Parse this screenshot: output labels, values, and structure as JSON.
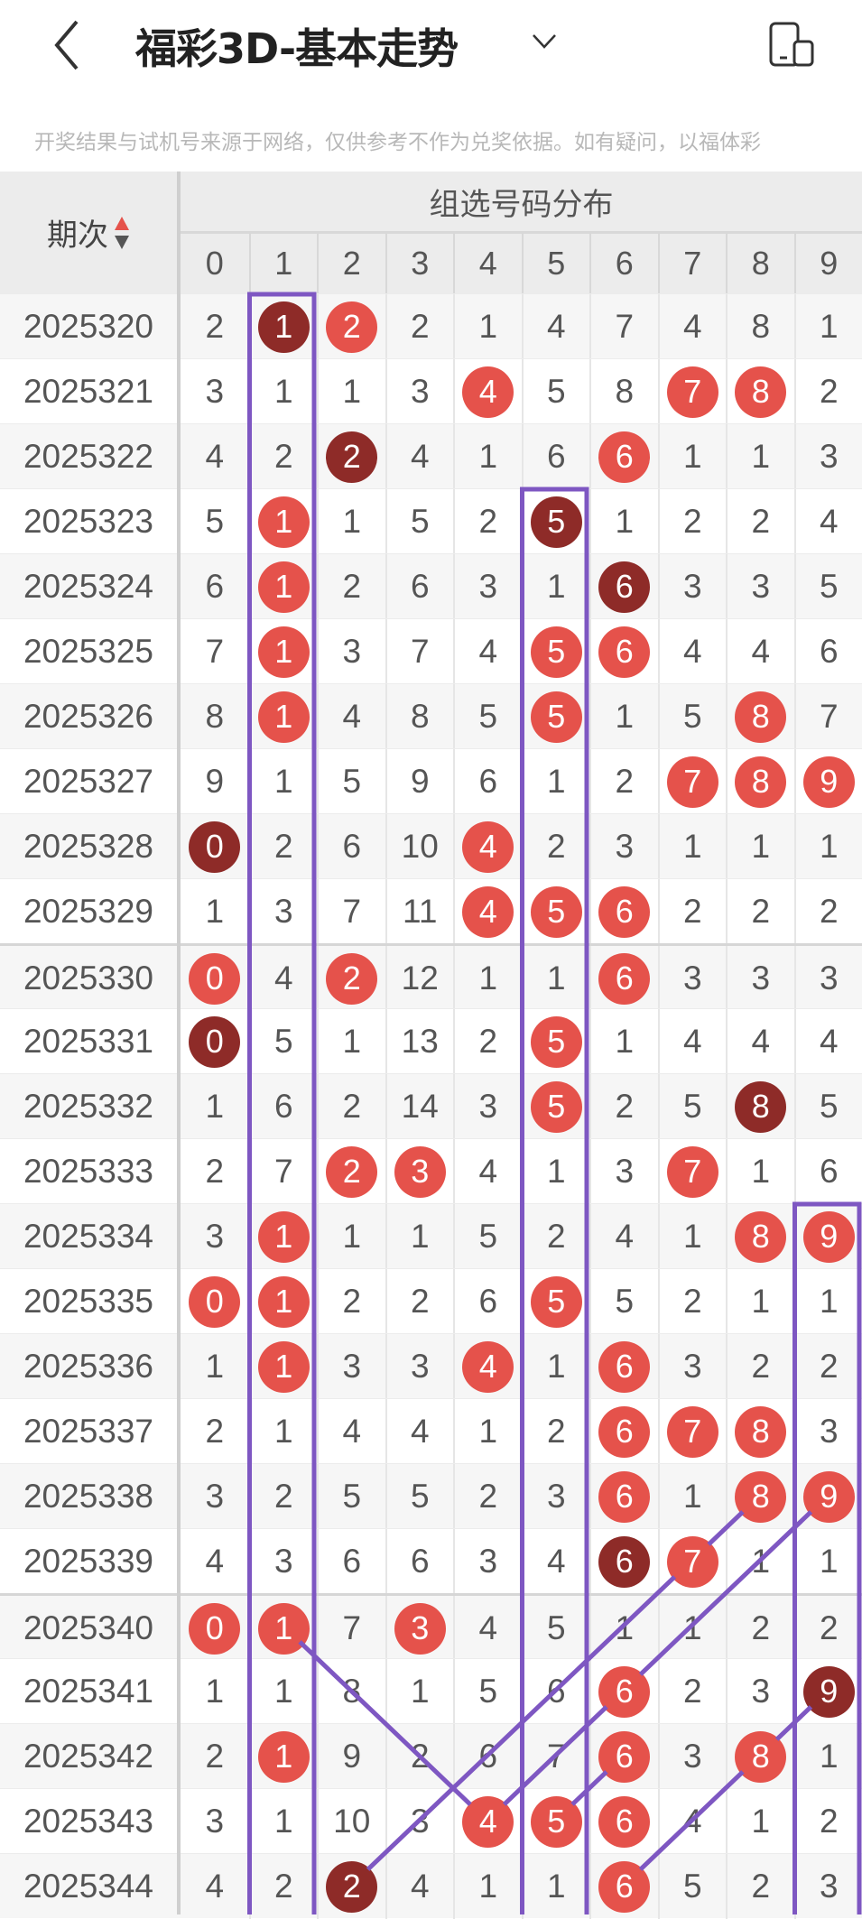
{
  "header": {
    "title": "福彩3D-基本走势",
    "back_icon": "chevron-left-icon",
    "dropdown_icon": "chevron-down-icon",
    "device_icon": "device-rotate-icon"
  },
  "notice": "开奖结果与试机号来源于网络，仅供参考不作为兑奖依据。如有疑问，以福体彩",
  "table": {
    "period_header": "期次",
    "group_header": "组选号码分布",
    "digits": [
      "0",
      "1",
      "2",
      "3",
      "4",
      "5",
      "6",
      "7",
      "8",
      "9"
    ],
    "colors": {
      "hit": "#e5524b",
      "repeat_hit": "#8e2b28",
      "overlay": "#7e57c2"
    },
    "rows": [
      {
        "period": "2025320",
        "cells": [
          2,
          1,
          2,
          2,
          1,
          4,
          7,
          4,
          8,
          1
        ],
        "hits": [
          2
        ],
        "repeat_hits": [
          1
        ]
      },
      {
        "period": "2025321",
        "cells": [
          3,
          1,
          1,
          3,
          4,
          5,
          8,
          7,
          8,
          2
        ],
        "hits": [
          4,
          7,
          8
        ],
        "repeat_hits": []
      },
      {
        "period": "2025322",
        "cells": [
          4,
          2,
          2,
          4,
          1,
          6,
          6,
          1,
          1,
          3
        ],
        "hits": [
          6
        ],
        "repeat_hits": [
          2
        ]
      },
      {
        "period": "2025323",
        "cells": [
          5,
          1,
          1,
          5,
          2,
          5,
          1,
          2,
          2,
          4
        ],
        "hits": [
          1
        ],
        "repeat_hits": [
          5
        ]
      },
      {
        "period": "2025324",
        "cells": [
          6,
          1,
          2,
          6,
          3,
          1,
          6,
          3,
          3,
          5
        ],
        "hits": [
          1
        ],
        "repeat_hits": [
          6
        ]
      },
      {
        "period": "2025325",
        "cells": [
          7,
          1,
          3,
          7,
          4,
          5,
          6,
          4,
          4,
          6
        ],
        "hits": [
          1,
          5,
          6
        ],
        "repeat_hits": []
      },
      {
        "period": "2025326",
        "cells": [
          8,
          1,
          4,
          8,
          5,
          5,
          1,
          5,
          8,
          7
        ],
        "hits": [
          1,
          5,
          8
        ],
        "repeat_hits": []
      },
      {
        "period": "2025327",
        "cells": [
          9,
          1,
          5,
          9,
          6,
          1,
          2,
          7,
          8,
          9
        ],
        "hits": [
          7,
          8,
          9
        ],
        "repeat_hits": []
      },
      {
        "period": "2025328",
        "cells": [
          0,
          2,
          6,
          10,
          4,
          2,
          3,
          1,
          1,
          1
        ],
        "hits": [
          4
        ],
        "repeat_hits": [
          0
        ]
      },
      {
        "period": "2025329",
        "cells": [
          1,
          3,
          7,
          11,
          4,
          5,
          6,
          2,
          2,
          2
        ],
        "hits": [
          4,
          5,
          6
        ],
        "repeat_hits": []
      },
      {
        "period": "2025330",
        "cells": [
          0,
          4,
          2,
          12,
          1,
          1,
          6,
          3,
          3,
          3
        ],
        "hits": [
          0,
          2,
          6
        ],
        "repeat_hits": []
      },
      {
        "period": "2025331",
        "cells": [
          0,
          5,
          1,
          13,
          2,
          5,
          1,
          4,
          4,
          4
        ],
        "hits": [
          5
        ],
        "repeat_hits": [
          0
        ]
      },
      {
        "period": "2025332",
        "cells": [
          1,
          6,
          2,
          14,
          3,
          5,
          2,
          5,
          8,
          5
        ],
        "hits": [
          5
        ],
        "repeat_hits": [
          8
        ]
      },
      {
        "period": "2025333",
        "cells": [
          2,
          7,
          2,
          3,
          4,
          1,
          3,
          7,
          1,
          6
        ],
        "hits": [
          2,
          3,
          7
        ],
        "repeat_hits": []
      },
      {
        "period": "2025334",
        "cells": [
          3,
          1,
          1,
          1,
          5,
          2,
          4,
          1,
          8,
          9
        ],
        "hits": [
          1,
          8,
          9
        ],
        "repeat_hits": []
      },
      {
        "period": "2025335",
        "cells": [
          0,
          1,
          2,
          2,
          6,
          5,
          5,
          2,
          1,
          1
        ],
        "hits": [
          0,
          1,
          5
        ],
        "repeat_hits": []
      },
      {
        "period": "2025336",
        "cells": [
          1,
          1,
          3,
          3,
          4,
          1,
          6,
          3,
          2,
          2
        ],
        "hits": [
          1,
          4,
          6
        ],
        "repeat_hits": []
      },
      {
        "period": "2025337",
        "cells": [
          2,
          1,
          4,
          4,
          1,
          2,
          6,
          7,
          8,
          3
        ],
        "hits": [
          6,
          7,
          8
        ],
        "repeat_hits": []
      },
      {
        "period": "2025338",
        "cells": [
          3,
          2,
          5,
          5,
          2,
          3,
          6,
          1,
          8,
          9
        ],
        "hits": [
          6,
          8,
          9
        ],
        "repeat_hits": []
      },
      {
        "period": "2025339",
        "cells": [
          4,
          3,
          6,
          6,
          3,
          4,
          6,
          7,
          1,
          1
        ],
        "hits": [
          7
        ],
        "repeat_hits": [
          6
        ]
      },
      {
        "period": "2025340",
        "cells": [
          0,
          1,
          7,
          3,
          4,
          5,
          1,
          1,
          2,
          2
        ],
        "hits": [
          0,
          1,
          3
        ],
        "repeat_hits": []
      },
      {
        "period": "2025341",
        "cells": [
          1,
          1,
          8,
          1,
          5,
          6,
          6,
          2,
          3,
          9
        ],
        "hits": [
          6
        ],
        "repeat_hits": [
          9
        ]
      },
      {
        "period": "2025342",
        "cells": [
          2,
          1,
          9,
          2,
          6,
          7,
          6,
          3,
          8,
          1
        ],
        "hits": [
          1,
          6,
          8
        ],
        "repeat_hits": []
      },
      {
        "period": "2025343",
        "cells": [
          3,
          1,
          10,
          3,
          4,
          5,
          6,
          4,
          1,
          2
        ],
        "hits": [
          4,
          5,
          6
        ],
        "repeat_hits": []
      },
      {
        "period": "2025344",
        "cells": [
          4,
          2,
          2,
          4,
          1,
          1,
          6,
          5,
          2,
          3
        ],
        "hits": [
          6
        ],
        "repeat_hits": [
          2
        ]
      }
    ]
  },
  "annotations": {
    "boxes": [
      {
        "digit": 1,
        "from_period": "2025320"
      },
      {
        "digit": 5,
        "from_period": "2025323"
      },
      {
        "digit": 9,
        "from_period": "2025334"
      }
    ],
    "lines": [
      {
        "from": [
          "2025340",
          1
        ],
        "to": [
          "2025343",
          4
        ]
      },
      {
        "from": [
          "2025344",
          2
        ],
        "to": [
          "2025339",
          7
        ]
      },
      {
        "from": [
          "2025339",
          7
        ],
        "to": [
          "2025338",
          8
        ]
      },
      {
        "from": [
          "2025343",
          4
        ],
        "to": [
          "2025341",
          6
        ]
      },
      {
        "from": [
          "2025341",
          6
        ],
        "to": [
          "2025338",
          9
        ]
      },
      {
        "from": [
          "2025343",
          5
        ],
        "to": [
          "2025342",
          6
        ]
      },
      {
        "from": [
          "2025344",
          6
        ],
        "to": [
          "2025342",
          8
        ]
      },
      {
        "from": [
          "2025342",
          8
        ],
        "to": [
          "2025341",
          9
        ]
      }
    ]
  }
}
